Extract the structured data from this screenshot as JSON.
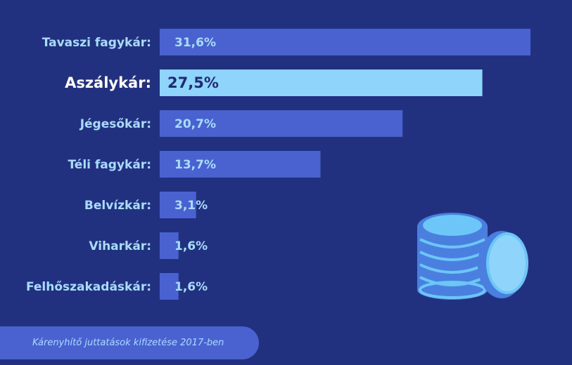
{
  "chart_data": {
    "type": "bar",
    "orientation": "horizontal",
    "categories": [
      "Tavaszi fagykár:",
      "Aszálykár:",
      "Jégesőkár:",
      "Téli fagykár:",
      "Belvízkár:",
      "Viharkár:",
      "Felhőszakadáskár:"
    ],
    "values": [
      31.6,
      27.5,
      20.7,
      13.7,
      3.1,
      1.6,
      1.6
    ],
    "value_labels": [
      "31,6%",
      "27,5%",
      "20,7%",
      "13,7%",
      "3,1%",
      "1,6%",
      "1,6%"
    ],
    "highlight_index": 1,
    "xlim": [
      0,
      31.6
    ],
    "grid": false,
    "title": "",
    "xlabel": "",
    "ylabel": ""
  },
  "footer": {
    "note": "Kárenyhítő juttatások kifizetése 2017-ben"
  },
  "colors": {
    "background": "#22317f",
    "bar": "#4a62d0",
    "bar_highlight": "#8fd4fa",
    "label": "#a9dcff",
    "label_highlight": "#ffffff",
    "coin_body": "#4a7fe0",
    "coin_top": "#6cc6f7"
  },
  "decoration": {
    "icon": "coins-stack-icon"
  }
}
